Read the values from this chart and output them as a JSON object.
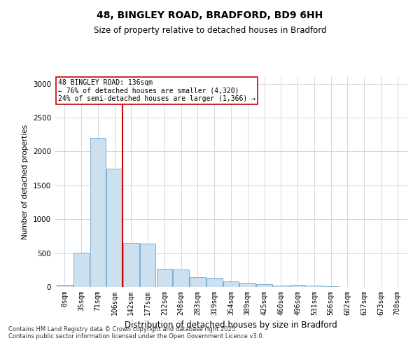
{
  "title_line1": "48, BINGLEY ROAD, BRADFORD, BD9 6HH",
  "title_line2": "Size of property relative to detached houses in Bradford",
  "xlabel": "Distribution of detached houses by size in Bradford",
  "ylabel": "Number of detached properties",
  "categories": [
    "0sqm",
    "35sqm",
    "71sqm",
    "106sqm",
    "142sqm",
    "177sqm",
    "212sqm",
    "248sqm",
    "283sqm",
    "319sqm",
    "354sqm",
    "389sqm",
    "425sqm",
    "460sqm",
    "496sqm",
    "531sqm",
    "566sqm",
    "602sqm",
    "637sqm",
    "673sqm",
    "708sqm"
  ],
  "values": [
    30,
    510,
    2200,
    1750,
    650,
    640,
    268,
    262,
    140,
    130,
    85,
    60,
    40,
    25,
    28,
    22,
    8,
    5,
    4,
    3,
    2
  ],
  "bar_color": "#cce0f0",
  "bar_edge_color": "#7bafd4",
  "vline_color": "#cc0000",
  "annotation_text_line1": "48 BINGLEY ROAD: 136sqm",
  "annotation_text_line2": "← 76% of detached houses are smaller (4,320)",
  "annotation_text_line3": "24% of semi-detached houses are larger (1,366) →",
  "annotation_box_color": "#ffffff",
  "annotation_box_edge_color": "#cc0000",
  "ylim": [
    0,
    3100
  ],
  "yticks": [
    0,
    500,
    1000,
    1500,
    2000,
    2500,
    3000
  ],
  "background_color": "#ffffff",
  "grid_color": "#d0d8e0",
  "footer_line1": "Contains HM Land Registry data © Crown copyright and database right 2025.",
  "footer_line2": "Contains public sector information licensed under the Open Government Licence v3.0."
}
